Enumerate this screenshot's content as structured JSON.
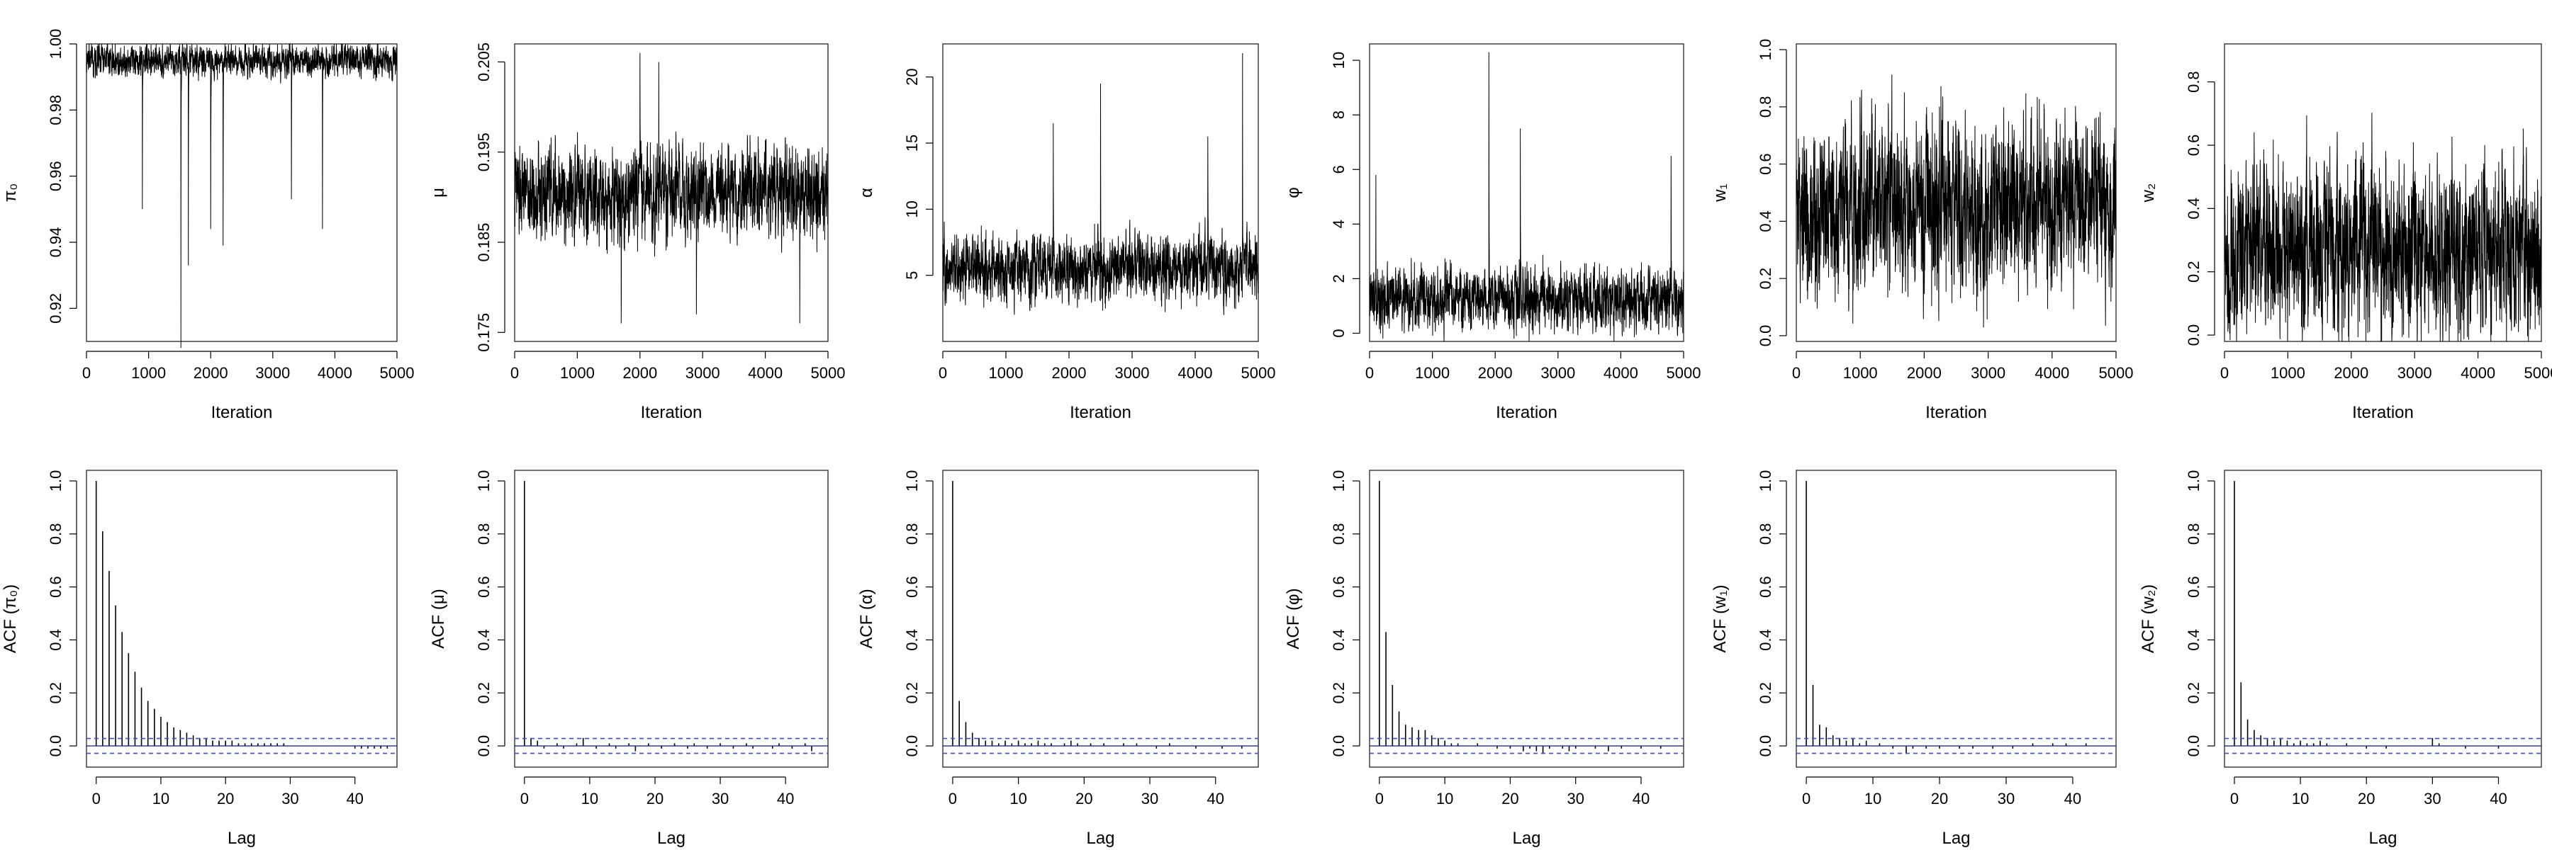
{
  "chart_data": [
    {
      "id": "trace-pi0",
      "type": "line",
      "ylabel": "π₀",
      "xlabel": "Iteration",
      "xlim": [
        0,
        5000
      ],
      "ylim": [
        0.91,
        1.0
      ],
      "xticks": [
        0,
        1000,
        2000,
        3000,
        4000,
        5000
      ],
      "yticks": [
        0.92,
        0.94,
        0.96,
        0.98,
        1.0
      ],
      "ytick_labels": [
        "0.92",
        "0.94",
        "0.96",
        "0.98",
        "1.00"
      ],
      "trace": {
        "n": 5000,
        "center": 0.995,
        "band": [
          0.985,
          1.0
        ],
        "spikes": [
          [
            1520,
            0.908
          ],
          [
            1640,
            0.933
          ],
          [
            2000,
            0.944
          ],
          [
            2200,
            0.939
          ],
          [
            900,
            0.95
          ],
          [
            3800,
            0.944
          ],
          [
            3300,
            0.953
          ]
        ]
      }
    },
    {
      "id": "trace-mu",
      "type": "line",
      "ylabel": "μ",
      "xlabel": "Iteration",
      "xlim": [
        0,
        5000
      ],
      "ylim": [
        0.174,
        0.207
      ],
      "xticks": [
        0,
        1000,
        2000,
        3000,
        4000,
        5000
      ],
      "yticks": [
        0.175,
        0.185,
        0.195,
        0.205
      ],
      "ytick_labels": [
        "0.175",
        "0.185",
        "0.195",
        "0.205"
      ],
      "trace": {
        "n": 5000,
        "center": 0.1905,
        "band": [
          0.183,
          0.198
        ],
        "spikes": [
          [
            1700,
            0.176
          ],
          [
            2000,
            0.206
          ],
          [
            2900,
            0.177
          ],
          [
            4550,
            0.176
          ],
          [
            2300,
            0.205
          ]
        ]
      }
    },
    {
      "id": "trace-alpha",
      "type": "line",
      "ylabel": "α",
      "xlabel": "Iteration",
      "xlim": [
        0,
        5000
      ],
      "ylim": [
        0,
        22.5
      ],
      "xticks": [
        0,
        1000,
        2000,
        3000,
        4000,
        5000
      ],
      "yticks": [
        5,
        10,
        15,
        20
      ],
      "ytick_labels": [
        "5",
        "10",
        "15",
        "20"
      ],
      "trace": {
        "n": 5000,
        "center": 5.5,
        "band": [
          2.5,
          10
        ],
        "spikes": [
          [
            2500,
            19.5
          ],
          [
            4750,
            21.8
          ],
          [
            1750,
            16.5
          ],
          [
            4200,
            15.5
          ]
        ]
      }
    },
    {
      "id": "trace-phi",
      "type": "line",
      "ylabel": "φ",
      "xlabel": "Iteration",
      "xlim": [
        0,
        5000
      ],
      "ylim": [
        -0.3,
        10.6
      ],
      "xticks": [
        0,
        1000,
        2000,
        3000,
        4000,
        5000
      ],
      "yticks": [
        0,
        2,
        4,
        6,
        8,
        10
      ],
      "ytick_labels": [
        "0",
        "2",
        "4",
        "6",
        "8",
        "10"
      ],
      "trace": {
        "n": 5000,
        "center": 1.2,
        "band": [
          0.1,
          3.5
        ],
        "spikes": [
          [
            1900,
            10.3
          ],
          [
            2400,
            7.5
          ],
          [
            100,
            5.8
          ],
          [
            4800,
            6.5
          ]
        ]
      }
    },
    {
      "id": "trace-w1",
      "type": "line",
      "ylabel": "w₁",
      "xlabel": "Iteration",
      "xlim": [
        0,
        5000
      ],
      "ylim": [
        -0.02,
        1.02
      ],
      "xticks": [
        0,
        1000,
        2000,
        3000,
        4000,
        5000
      ],
      "yticks": [
        0.0,
        0.2,
        0.4,
        0.6,
        0.8,
        1.0
      ],
      "ytick_labels": [
        "0.0",
        "0.2",
        "0.4",
        "0.6",
        "0.8",
        "1.0"
      ],
      "trace": {
        "n": 5000,
        "center": 0.45,
        "band": [
          0.05,
          0.95
        ],
        "spikes": []
      }
    },
    {
      "id": "trace-w2",
      "type": "line",
      "ylabel": "w₂",
      "xlabel": "Iteration",
      "xlim": [
        0,
        5000
      ],
      "ylim": [
        -0.02,
        0.92
      ],
      "xticks": [
        0,
        1000,
        2000,
        3000,
        4000,
        5000
      ],
      "yticks": [
        0.0,
        0.2,
        0.4,
        0.6,
        0.8
      ],
      "ytick_labels": [
        "0.0",
        "0.2",
        "0.4",
        "0.6",
        "0.8"
      ],
      "trace": {
        "n": 5000,
        "center": 0.27,
        "band": [
          0.02,
          0.85
        ],
        "spikes": []
      }
    },
    {
      "id": "acf-pi0",
      "type": "bar",
      "ylabel": "ACF (π₀)",
      "xlabel": "Lag",
      "xlim": [
        -1.5,
        46.5
      ],
      "ylim": [
        -0.08,
        1.04
      ],
      "xticks": [
        0,
        10,
        20,
        30,
        40
      ],
      "yticks": [
        0.0,
        0.2,
        0.4,
        0.6,
        0.8,
        1.0
      ],
      "ytick_labels": [
        "0.0",
        "0.2",
        "0.4",
        "0.6",
        "0.8",
        "1.0"
      ],
      "ci": 0.028,
      "lags": [
        0,
        1,
        2,
        3,
        4,
        5,
        6,
        7,
        8,
        9,
        10,
        11,
        12,
        13,
        14,
        15,
        16,
        17,
        18,
        19,
        20,
        21,
        22,
        23,
        24,
        25,
        26,
        27,
        28,
        29,
        30,
        31,
        32,
        33,
        34,
        35,
        36,
        37,
        38,
        39,
        40,
        41,
        42,
        43,
        44,
        45
      ],
      "values": [
        1.0,
        0.81,
        0.66,
        0.53,
        0.43,
        0.35,
        0.28,
        0.22,
        0.17,
        0.14,
        0.11,
        0.09,
        0.07,
        0.06,
        0.05,
        0.04,
        0.03,
        0.03,
        0.02,
        0.02,
        0.02,
        0.02,
        0.01,
        0.01,
        0.01,
        0.01,
        0.01,
        0.01,
        0.01,
        0.01,
        0.0,
        0.0,
        0.0,
        0.0,
        0.0,
        0.0,
        0.0,
        0.0,
        0.0,
        0.0,
        -0.01,
        -0.01,
        -0.01,
        -0.01,
        -0.01,
        -0.01
      ]
    },
    {
      "id": "acf-mu",
      "type": "bar",
      "ylabel": "ACF (μ)",
      "xlabel": "Lag",
      "xlim": [
        -1.5,
        46.5
      ],
      "ylim": [
        -0.08,
        1.04
      ],
      "xticks": [
        0,
        10,
        20,
        30,
        40
      ],
      "yticks": [
        0.0,
        0.2,
        0.4,
        0.6,
        0.8,
        1.0
      ],
      "ytick_labels": [
        "0.0",
        "0.2",
        "0.4",
        "0.6",
        "0.8",
        "1.0"
      ],
      "ci": 0.028,
      "lags": [
        0,
        1,
        2,
        3,
        4,
        5,
        6,
        7,
        8,
        9,
        10,
        11,
        12,
        13,
        14,
        15,
        16,
        17,
        18,
        19,
        20,
        21,
        22,
        23,
        24,
        25,
        26,
        27,
        28,
        29,
        30,
        31,
        32,
        33,
        34,
        35,
        36,
        37,
        38,
        39,
        40,
        41,
        42,
        43,
        44,
        45
      ],
      "values": [
        1.0,
        0.03,
        0.02,
        -0.01,
        0.0,
        0.01,
        -0.01,
        0.0,
        0.01,
        0.03,
        0.0,
        -0.01,
        0.0,
        0.01,
        -0.01,
        0.0,
        0.01,
        -0.02,
        0.0,
        0.01,
        0.0,
        -0.01,
        0.0,
        0.01,
        0.0,
        -0.01,
        0.01,
        0.0,
        -0.01,
        0.0,
        0.01,
        0.0,
        -0.01,
        0.0,
        0.01,
        -0.01,
        0.0,
        0.0,
        -0.01,
        0.01,
        0.0,
        -0.01,
        0.0,
        0.01,
        -0.02,
        0.0
      ]
    },
    {
      "id": "acf-alpha",
      "type": "bar",
      "ylabel": "ACF (α)",
      "xlabel": "Lag",
      "xlim": [
        -1.5,
        46.5
      ],
      "ylim": [
        -0.08,
        1.04
      ],
      "xticks": [
        0,
        10,
        20,
        30,
        40
      ],
      "yticks": [
        0.0,
        0.2,
        0.4,
        0.6,
        0.8,
        1.0
      ],
      "ytick_labels": [
        "0.0",
        "0.2",
        "0.4",
        "0.6",
        "0.8",
        "1.0"
      ],
      "ci": 0.028,
      "lags": [
        0,
        1,
        2,
        3,
        4,
        5,
        6,
        7,
        8,
        9,
        10,
        11,
        12,
        13,
        14,
        15,
        16,
        17,
        18,
        19,
        20,
        21,
        22,
        23,
        24,
        25,
        26,
        27,
        28,
        29,
        30,
        31,
        32,
        33,
        34,
        35,
        36,
        37,
        38,
        39,
        40,
        41,
        42,
        43,
        44,
        45
      ],
      "values": [
        1.0,
        0.17,
        0.09,
        0.05,
        0.03,
        0.02,
        0.02,
        0.01,
        0.02,
        0.01,
        0.02,
        0.01,
        0.01,
        0.02,
        0.01,
        0.01,
        0.0,
        0.01,
        0.02,
        0.01,
        0.0,
        0.01,
        0.0,
        0.01,
        0.0,
        0.0,
        0.01,
        0.0,
        0.01,
        0.0,
        0.0,
        -0.01,
        0.0,
        0.01,
        0.0,
        0.0,
        0.0,
        -0.01,
        0.0,
        0.0,
        0.0,
        -0.01,
        0.0,
        0.0,
        -0.01,
        0.0
      ]
    },
    {
      "id": "acf-phi",
      "type": "bar",
      "ylabel": "ACF (φ)",
      "xlabel": "Lag",
      "xlim": [
        -1.5,
        46.5
      ],
      "ylim": [
        -0.08,
        1.04
      ],
      "xticks": [
        0,
        10,
        20,
        30,
        40
      ],
      "yticks": [
        0.0,
        0.2,
        0.4,
        0.6,
        0.8,
        1.0
      ],
      "ytick_labels": [
        "0.0",
        "0.2",
        "0.4",
        "0.6",
        "0.8",
        "1.0"
      ],
      "ci": 0.028,
      "lags": [
        0,
        1,
        2,
        3,
        4,
        5,
        6,
        7,
        8,
        9,
        10,
        11,
        12,
        13,
        14,
        15,
        16,
        17,
        18,
        19,
        20,
        21,
        22,
        23,
        24,
        25,
        26,
        27,
        28,
        29,
        30,
        31,
        32,
        33,
        34,
        35,
        36,
        37,
        38,
        39,
        40,
        41,
        42,
        43,
        44,
        45
      ],
      "values": [
        1.0,
        0.43,
        0.23,
        0.13,
        0.08,
        0.07,
        0.06,
        0.06,
        0.04,
        0.03,
        0.02,
        0.01,
        0.01,
        0.0,
        0.0,
        0.01,
        0.0,
        0.0,
        -0.01,
        0.0,
        -0.01,
        0.0,
        -0.02,
        -0.01,
        -0.02,
        -0.03,
        -0.01,
        0.0,
        -0.01,
        -0.02,
        -0.01,
        0.0,
        0.0,
        -0.01,
        0.0,
        -0.02,
        0.0,
        -0.01,
        0.0,
        0.0,
        -0.01,
        0.0,
        0.0,
        -0.01,
        0.0,
        0.0
      ]
    },
    {
      "id": "acf-w1",
      "type": "bar",
      "ylabel": "ACF (w₁)",
      "xlabel": "Lag",
      "xlim": [
        -1.5,
        46.5
      ],
      "ylim": [
        -0.08,
        1.04
      ],
      "xticks": [
        0,
        10,
        20,
        30,
        40
      ],
      "yticks": [
        0.0,
        0.2,
        0.4,
        0.6,
        0.8,
        1.0
      ],
      "ytick_labels": [
        "0.0",
        "0.2",
        "0.4",
        "0.6",
        "0.8",
        "1.0"
      ],
      "ci": 0.028,
      "lags": [
        0,
        1,
        2,
        3,
        4,
        5,
        6,
        7,
        8,
        9,
        10,
        11,
        12,
        13,
        14,
        15,
        16,
        17,
        18,
        19,
        20,
        21,
        22,
        23,
        24,
        25,
        26,
        27,
        28,
        29,
        30,
        31,
        32,
        33,
        34,
        35,
        36,
        37,
        38,
        39,
        40,
        41,
        42,
        43,
        44,
        45
      ],
      "values": [
        1.0,
        0.23,
        0.08,
        0.07,
        0.04,
        0.03,
        0.02,
        0.03,
        0.01,
        0.02,
        0.0,
        0.01,
        0.0,
        -0.01,
        0.0,
        -0.03,
        -0.01,
        0.0,
        -0.01,
        0.0,
        -0.01,
        0.0,
        0.0,
        -0.01,
        0.0,
        -0.01,
        0.0,
        0.0,
        -0.01,
        0.0,
        0.0,
        -0.01,
        0.0,
        0.0,
        0.01,
        0.0,
        0.0,
        0.01,
        0.0,
        0.01,
        0.0,
        0.0,
        0.01,
        0.0,
        0.0,
        0.0
      ]
    },
    {
      "id": "acf-w2",
      "type": "bar",
      "ylabel": "ACF (w₂)",
      "xlabel": "Lag",
      "xlim": [
        -1.5,
        46.5
      ],
      "ylim": [
        -0.08,
        1.04
      ],
      "xticks": [
        0,
        10,
        20,
        30,
        40
      ],
      "yticks": [
        0.0,
        0.2,
        0.4,
        0.6,
        0.8,
        1.0
      ],
      "ytick_labels": [
        "0.0",
        "0.2",
        "0.4",
        "0.6",
        "0.8",
        "1.0"
      ],
      "ci": 0.028,
      "lags": [
        0,
        1,
        2,
        3,
        4,
        5,
        6,
        7,
        8,
        9,
        10,
        11,
        12,
        13,
        14,
        15,
        16,
        17,
        18,
        19,
        20,
        21,
        22,
        23,
        24,
        25,
        26,
        27,
        28,
        29,
        30,
        31,
        32,
        33,
        34,
        35,
        36,
        37,
        38,
        39,
        40,
        41,
        42,
        43,
        44,
        45
      ],
      "values": [
        1.0,
        0.24,
        0.1,
        0.06,
        0.04,
        0.03,
        0.02,
        0.03,
        0.02,
        0.01,
        0.02,
        0.01,
        0.01,
        0.02,
        0.01,
        0.0,
        0.0,
        0.01,
        0.0,
        0.0,
        -0.01,
        0.0,
        0.0,
        -0.01,
        0.0,
        0.0,
        0.0,
        0.0,
        0.0,
        0.0,
        0.03,
        0.01,
        0.0,
        0.0,
        0.0,
        -0.01,
        0.0,
        0.0,
        0.0,
        0.0,
        -0.01,
        0.0,
        0.0,
        0.0,
        0.0,
        0.0
      ]
    }
  ]
}
